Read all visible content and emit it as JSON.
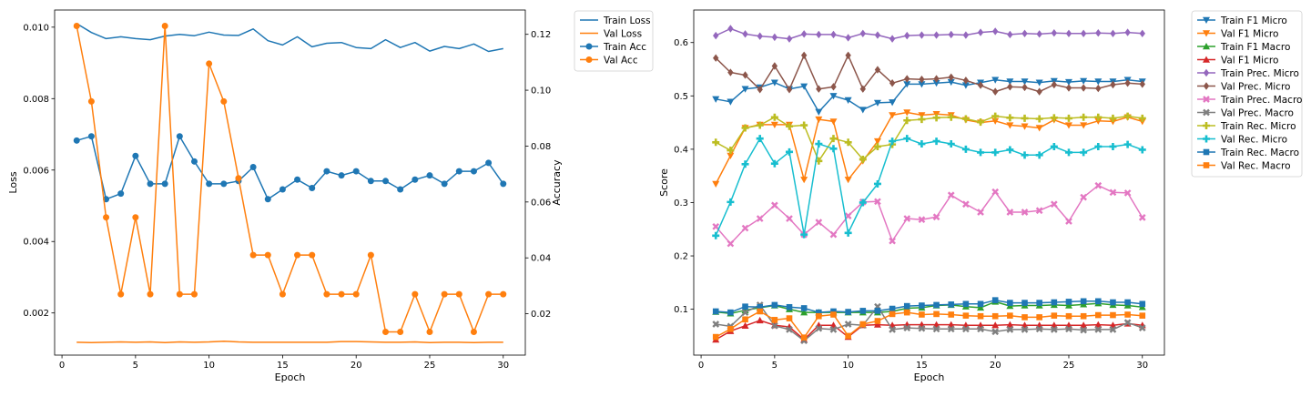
{
  "chart_data": [
    {
      "type": "line",
      "xlabel": "Epoch",
      "ylabel": "Loss",
      "y2label": "Accuracy",
      "xlim": [
        -0.5,
        31.5
      ],
      "ylim": [
        0.00082,
        0.01048
      ],
      "y2lim": [
        0.0052,
        0.1287
      ],
      "xticks": [
        0,
        5,
        10,
        15,
        20,
        25,
        30
      ],
      "yticks": [
        0.002,
        0.004,
        0.006,
        0.008,
        0.01
      ],
      "ytick_labels": [
        "0.002",
        "0.004",
        "0.006",
        "0.008",
        "0.010"
      ],
      "y2ticks": [
        0.02,
        0.04,
        0.06,
        0.08,
        0.1,
        0.12
      ],
      "y2tick_labels": [
        "0.02",
        "0.04",
        "0.06",
        "0.08",
        "0.10",
        "0.12"
      ],
      "grid": false,
      "legend_position": "outside-right-top",
      "x": [
        1,
        2,
        3,
        4,
        5,
        6,
        7,
        8,
        9,
        10,
        11,
        12,
        13,
        14,
        15,
        16,
        17,
        18,
        19,
        20,
        21,
        22,
        23,
        24,
        25,
        26,
        27,
        28,
        29,
        30
      ],
      "series": [
        {
          "name": "Train Loss",
          "axis": "left",
          "color": "#1f77b4",
          "marker": "none",
          "values": [
            0.0101,
            0.00985,
            0.00968,
            0.00973,
            0.00968,
            0.00965,
            0.00975,
            0.0098,
            0.00976,
            0.00986,
            0.00978,
            0.00977,
            0.00995,
            0.00962,
            0.0095,
            0.00973,
            0.00945,
            0.00955,
            0.00957,
            0.00943,
            0.0094,
            0.00965,
            0.00943,
            0.00957,
            0.00933,
            0.00946,
            0.0094,
            0.00953,
            0.00932,
            0.0094
          ]
        },
        {
          "name": "Val Loss",
          "axis": "left",
          "color": "#ff7f0e",
          "marker": "none",
          "values": [
            0.00118,
            0.00117,
            0.00118,
            0.00119,
            0.00118,
            0.00119,
            0.00117,
            0.00119,
            0.00118,
            0.00119,
            0.00121,
            0.00119,
            0.00118,
            0.00118,
            0.00118,
            0.00118,
            0.00118,
            0.00118,
            0.0012,
            0.0012,
            0.00119,
            0.00118,
            0.00118,
            0.00119,
            0.00117,
            0.00118,
            0.00118,
            0.00117,
            0.00118,
            0.00118
          ]
        },
        {
          "name": "Train Acc",
          "axis": "right",
          "color": "#1f77b4",
          "marker": "circle",
          "values": [
            0.082,
            0.0835,
            0.061,
            0.063,
            0.0765,
            0.0665,
            0.0665,
            0.0835,
            0.0745,
            0.0665,
            0.0665,
            0.0675,
            0.0725,
            0.061,
            0.0645,
            0.068,
            0.065,
            0.071,
            0.0695,
            0.071,
            0.0675,
            0.0675,
            0.0645,
            0.068,
            0.0695,
            0.0665,
            0.071,
            0.071,
            0.074,
            0.0665
          ]
        },
        {
          "name": "Val Acc",
          "axis": "right",
          "color": "#ff7f0e",
          "marker": "circle",
          "values": [
            0.123,
            0.096,
            0.0545,
            0.027,
            0.0545,
            0.027,
            0.123,
            0.027,
            0.027,
            0.1095,
            0.096,
            0.0685,
            0.041,
            0.041,
            0.027,
            0.041,
            0.041,
            0.027,
            0.027,
            0.027,
            0.041,
            0.0135,
            0.0135,
            0.027,
            0.0135,
            0.027,
            0.027,
            0.0135,
            0.027,
            0.027
          ]
        }
      ]
    },
    {
      "type": "line",
      "xlabel": "Epoch",
      "ylabel": "Score",
      "xlim": [
        -0.5,
        31.5
      ],
      "ylim": [
        0.014,
        0.661
      ],
      "xticks": [
        0,
        5,
        10,
        15,
        20,
        25,
        30
      ],
      "yticks": [
        0.1,
        0.2,
        0.3,
        0.4,
        0.5,
        0.6
      ],
      "ytick_labels": [
        "0.1",
        "0.2",
        "0.3",
        "0.4",
        "0.5",
        "0.6"
      ],
      "grid": false,
      "legend_position": "outside-right-top",
      "x": [
        1,
        2,
        3,
        4,
        5,
        6,
        7,
        8,
        9,
        10,
        11,
        12,
        13,
        14,
        15,
        16,
        17,
        18,
        19,
        20,
        21,
        22,
        23,
        24,
        25,
        26,
        27,
        28,
        29,
        30
      ],
      "series": [
        {
          "name": "Train F1 Micro",
          "color": "#1f77b4",
          "marker": "tri-down",
          "values": [
            0.494,
            0.489,
            0.513,
            0.516,
            0.525,
            0.513,
            0.518,
            0.47,
            0.5,
            0.492,
            0.474,
            0.487,
            0.488,
            0.522,
            0.522,
            0.524,
            0.526,
            0.52,
            0.525,
            0.53,
            0.527,
            0.527,
            0.525,
            0.528,
            0.526,
            0.528,
            0.527,
            0.527,
            0.53,
            0.527
          ]
        },
        {
          "name": "Val F1 Micro",
          "color": "#ff7f0e",
          "marker": "tri-down",
          "values": [
            0.335,
            0.388,
            0.44,
            0.446,
            0.446,
            0.446,
            0.343,
            0.456,
            0.452,
            0.343,
            0.378,
            0.415,
            0.464,
            0.469,
            0.464,
            0.466,
            0.464,
            0.455,
            0.45,
            0.453,
            0.445,
            0.443,
            0.44,
            0.455,
            0.445,
            0.445,
            0.453,
            0.452,
            0.46,
            0.452
          ]
        },
        {
          "name": "Train F1 Macro",
          "color": "#2ca02c",
          "marker": "tri-up",
          "values": [
            0.095,
            0.092,
            0.098,
            0.103,
            0.107,
            0.1,
            0.094,
            0.094,
            0.094,
            0.094,
            0.094,
            0.094,
            0.096,
            0.102,
            0.103,
            0.107,
            0.108,
            0.105,
            0.103,
            0.114,
            0.106,
            0.107,
            0.107,
            0.108,
            0.107,
            0.109,
            0.111,
            0.108,
            0.107,
            0.104
          ]
        },
        {
          "name": "Val F1 Micro",
          "color": "#d62728",
          "marker": "tri-up",
          "values": [
            0.043,
            0.059,
            0.069,
            0.079,
            0.07,
            0.067,
            0.043,
            0.07,
            0.07,
            0.048,
            0.07,
            0.071,
            0.07,
            0.071,
            0.071,
            0.071,
            0.071,
            0.07,
            0.07,
            0.07,
            0.071,
            0.07,
            0.07,
            0.07,
            0.07,
            0.07,
            0.071,
            0.07,
            0.073,
            0.07
          ]
        },
        {
          "name": "Train Prec. Micro",
          "color": "#9467bd",
          "marker": "diamond",
          "values": [
            0.613,
            0.626,
            0.616,
            0.612,
            0.61,
            0.607,
            0.616,
            0.615,
            0.615,
            0.609,
            0.617,
            0.614,
            0.607,
            0.613,
            0.614,
            0.614,
            0.615,
            0.614,
            0.619,
            0.621,
            0.615,
            0.617,
            0.616,
            0.618,
            0.617,
            0.617,
            0.618,
            0.617,
            0.619,
            0.617
          ]
        },
        {
          "name": "Val Prec. Micro",
          "color": "#8c564b",
          "marker": "diamond",
          "values": [
            0.571,
            0.544,
            0.539,
            0.512,
            0.556,
            0.512,
            0.576,
            0.513,
            0.517,
            0.576,
            0.513,
            0.549,
            0.524,
            0.532,
            0.531,
            0.532,
            0.535,
            0.529,
            0.52,
            0.508,
            0.517,
            0.516,
            0.508,
            0.521,
            0.515,
            0.515,
            0.514,
            0.521,
            0.524,
            0.522
          ]
        },
        {
          "name": "Train Prec. Macro",
          "color": "#e377c2",
          "marker": "x",
          "values": [
            0.255,
            0.223,
            0.252,
            0.27,
            0.295,
            0.27,
            0.24,
            0.263,
            0.24,
            0.275,
            0.301,
            0.302,
            0.228,
            0.27,
            0.268,
            0.273,
            0.314,
            0.297,
            0.282,
            0.32,
            0.282,
            0.282,
            0.285,
            0.297,
            0.265,
            0.31,
            0.332,
            0.319,
            0.318,
            0.272
          ]
        },
        {
          "name": "Val Prec. Macro",
          "color": "#7f7f7f",
          "marker": "x",
          "values": [
            0.072,
            0.068,
            0.094,
            0.108,
            0.069,
            0.062,
            0.041,
            0.064,
            0.062,
            0.072,
            0.07,
            0.105,
            0.062,
            0.065,
            0.064,
            0.063,
            0.063,
            0.063,
            0.063,
            0.058,
            0.062,
            0.062,
            0.063,
            0.062,
            0.063,
            0.061,
            0.062,
            0.062,
            0.075,
            0.065
          ]
        },
        {
          "name": "Train Rec. Micro",
          "color": "#bcbd22",
          "marker": "plus",
          "values": [
            0.413,
            0.398,
            0.44,
            0.445,
            0.46,
            0.443,
            0.445,
            0.378,
            0.42,
            0.413,
            0.381,
            0.405,
            0.409,
            0.454,
            0.456,
            0.459,
            0.46,
            0.457,
            0.451,
            0.462,
            0.459,
            0.458,
            0.457,
            0.459,
            0.458,
            0.46,
            0.46,
            0.458,
            0.462,
            0.458
          ]
        },
        {
          "name": "Val Rec. Micro",
          "color": "#17becf",
          "marker": "plus",
          "values": [
            0.238,
            0.301,
            0.372,
            0.42,
            0.373,
            0.395,
            0.24,
            0.41,
            0.401,
            0.243,
            0.3,
            0.335,
            0.415,
            0.42,
            0.41,
            0.415,
            0.41,
            0.4,
            0.394,
            0.394,
            0.399,
            0.389,
            0.389,
            0.405,
            0.394,
            0.394,
            0.405,
            0.405,
            0.409,
            0.399
          ]
        },
        {
          "name": "Train Rec. Macro",
          "color": "#1f77b4",
          "marker": "square",
          "values": [
            0.096,
            0.094,
            0.105,
            0.104,
            0.108,
            0.104,
            0.102,
            0.094,
            0.096,
            0.095,
            0.097,
            0.097,
            0.101,
            0.106,
            0.107,
            0.108,
            0.109,
            0.11,
            0.11,
            0.117,
            0.112,
            0.112,
            0.112,
            0.113,
            0.114,
            0.115,
            0.115,
            0.113,
            0.113,
            0.11
          ]
        },
        {
          "name": "Val Rec. Macro",
          "color": "#ff7f0e",
          "marker": "square",
          "values": [
            0.048,
            0.063,
            0.081,
            0.096,
            0.08,
            0.083,
            0.047,
            0.087,
            0.09,
            0.05,
            0.072,
            0.078,
            0.091,
            0.094,
            0.09,
            0.091,
            0.09,
            0.088,
            0.087,
            0.087,
            0.088,
            0.085,
            0.085,
            0.088,
            0.087,
            0.087,
            0.089,
            0.089,
            0.09,
            0.088
          ]
        }
      ]
    }
  ]
}
